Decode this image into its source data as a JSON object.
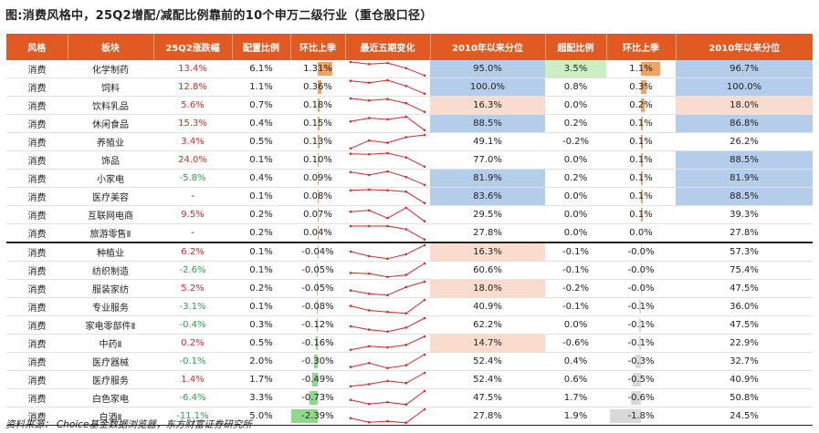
{
  "title": "图:消费风格中，25Q2增配/减配比例靠前的10个申万二级行业（重仓股口径）",
  "columns": [
    "风格",
    "板块",
    "25Q2涨跌幅",
    "配置比例",
    "环比上季",
    "最近五期变化",
    "2010年以来分位",
    "超配比例",
    "环比上季",
    "2010年以来分位"
  ],
  "rows": [
    {
      "style": "消费",
      "sector": "化学制药",
      "ret": "13.4%",
      "alloc": "6.1%",
      "qoq": "1.31%",
      "qoq_v": 1.31,
      "spark": [
        3,
        2.6,
        2.8,
        1.8,
        0.4
      ],
      "pct": "95.0%",
      "pct_hl": "blue",
      "over": "3.5%",
      "over_hl": "green",
      "qoq2": "1.1%",
      "qoq2_v": 1.1,
      "pct2": "96.7%",
      "pct2_hl": "blue"
    },
    {
      "style": "消费",
      "sector": "饲料",
      "ret": "12.8%",
      "alloc": "1.1%",
      "qoq": "0.36%",
      "qoq_v": 0.36,
      "spark": [
        2.8,
        2.5,
        2.9,
        2.0,
        0.8
      ],
      "pct": "100.0%",
      "pct_hl": "blue",
      "over": "0.8%",
      "over_hl": "",
      "qoq2": "0.3%",
      "qoq2_v": 0.3,
      "pct2": "100.0%",
      "pct2_hl": "blue"
    },
    {
      "style": "消费",
      "sector": "饮料乳品",
      "ret": "5.6%",
      "alloc": "0.7%",
      "qoq": "0.18%",
      "qoq_v": 0.18,
      "spark": [
        3,
        2.7,
        2.9,
        2.3,
        1.0
      ],
      "pct": "16.3%",
      "pct_hl": "pink",
      "over": "0.0%",
      "over_hl": "",
      "qoq2": "0.2%",
      "qoq2_v": 0.2,
      "pct2": "18.0%",
      "pct2_hl": "pink"
    },
    {
      "style": "消费",
      "sector": "休闲食品",
      "ret": "15.3%",
      "alloc": "0.4%",
      "qoq": "0.15%",
      "qoq_v": 0.15,
      "spark": [
        2.2,
        2.7,
        2.5,
        2.9,
        0.9
      ],
      "pct": "88.5%",
      "pct_hl": "blue",
      "over": "0.2%",
      "over_hl": "",
      "qoq2": "0.1%",
      "qoq2_v": 0.1,
      "pct2": "86.8%",
      "pct2_hl": "blue"
    },
    {
      "style": "消费",
      "sector": "养殖业",
      "ret": "3.4%",
      "alloc": "0.5%",
      "qoq": "0.13%",
      "qoq_v": 0.13,
      "spark": [
        0.6,
        2.0,
        1.6,
        2.6,
        3.0
      ],
      "pct": "49.1%",
      "pct_hl": "",
      "over": "-0.2%",
      "over_hl": "",
      "qoq2": "0.1%",
      "qoq2_v": 0.1,
      "pct2": "26.2%",
      "pct2_hl": ""
    },
    {
      "style": "消费",
      "sector": "饰品",
      "ret": "24.0%",
      "alloc": "0.1%",
      "qoq": "0.10%",
      "qoq_v": 0.1,
      "spark": [
        2.8,
        2.7,
        2.9,
        2.2,
        0.7
      ],
      "pct": "77.0%",
      "pct_hl": "",
      "over": "0.0%",
      "over_hl": "",
      "qoq2": "0.1%",
      "qoq2_v": 0.1,
      "pct2": "88.5%",
      "pct2_hl": "blue"
    },
    {
      "style": "消费",
      "sector": "小家电",
      "ret": "-5.8%",
      "alloc": "0.4%",
      "qoq": "0.09%",
      "qoq_v": 0.09,
      "spark": [
        2.6,
        2.2,
        2.7,
        1.9,
        0.8
      ],
      "pct": "81.9%",
      "pct_hl": "blue",
      "over": "0.2%",
      "over_hl": "",
      "qoq2": "0.1%",
      "qoq2_v": 0.1,
      "pct2": "81.9%",
      "pct2_hl": "blue"
    },
    {
      "style": "消费",
      "sector": "医疗美容",
      "ret": "-",
      "alloc": "0.1%",
      "qoq": "0.08%",
      "qoq_v": 0.08,
      "spark": [
        2.8,
        2.9,
        2.8,
        2.6,
        1.0
      ],
      "pct": "83.6%",
      "pct_hl": "blue",
      "over": "0.0%",
      "over_hl": "",
      "qoq2": "0.1%",
      "qoq2_v": 0.1,
      "pct2": "88.5%",
      "pct2_hl": "blue"
    },
    {
      "style": "消费",
      "sector": "互联网电商",
      "ret": "9.5%",
      "alloc": "0.2%",
      "qoq": "0.07%",
      "qoq_v": 0.07,
      "spark": [
        2.3,
        2.5,
        1.3,
        2.9,
        0.8
      ],
      "pct": "29.5%",
      "pct_hl": "",
      "over": "0.0%",
      "over_hl": "",
      "qoq2": "0.1%",
      "qoq2_v": 0.1,
      "pct2": "39.3%",
      "pct2_hl": ""
    },
    {
      "style": "消费",
      "sector": "旅游零售Ⅱ",
      "ret": "-",
      "alloc": "0.2%",
      "qoq": "0.04%",
      "qoq_v": 0.04,
      "spark": [
        2.8,
        2.8,
        2.8,
        2.4,
        1.1
      ],
      "pct": "27.8%",
      "pct_hl": "",
      "over": "0.0%",
      "over_hl": "",
      "qoq2": "0.0%",
      "qoq2_v": 0.0,
      "pct2": "27.8%",
      "pct2_hl": ""
    },
    {
      "style": "消费",
      "sector": "种植业",
      "ret": "6.2%",
      "alloc": "0.1%",
      "qoq": "-0.04%",
      "qoq_v": -0.04,
      "spark": [
        1.9,
        1.2,
        0.8,
        1.5,
        2.9
      ],
      "pct": "16.3%",
      "pct_hl": "pink",
      "over": "-0.1%",
      "over_hl": "",
      "qoq2": "-0.0%",
      "qoq2_v": -0.02,
      "pct2": "57.3%",
      "pct2_hl": ""
    },
    {
      "style": "消费",
      "sector": "纺织制造",
      "ret": "-2.6%",
      "alloc": "0.1%",
      "qoq": "-0.05%",
      "qoq_v": -0.05,
      "spark": [
        1.3,
        1.2,
        0.7,
        1.0,
        2.7
      ],
      "pct": "60.6%",
      "pct_hl": "",
      "over": "-0.1%",
      "over_hl": "",
      "qoq2": "-0.0%",
      "qoq2_v": -0.02,
      "pct2": "75.4%",
      "pct2_hl": ""
    },
    {
      "style": "消费",
      "sector": "服装家纺",
      "ret": "5.2%",
      "alloc": "0.2%",
      "qoq": "-0.05%",
      "qoq_v": -0.05,
      "spark": [
        1.3,
        0.8,
        0.6,
        1.8,
        2.6
      ],
      "pct": "18.0%",
      "pct_hl": "pink",
      "over": "-0.2%",
      "over_hl": "",
      "qoq2": "-0.0%",
      "qoq2_v": -0.02,
      "pct2": "47.5%",
      "pct2_hl": ""
    },
    {
      "style": "消费",
      "sector": "专业服务",
      "ret": "-3.1%",
      "alloc": "0.1%",
      "qoq": "-0.08%",
      "qoq_v": -0.08,
      "spark": [
        2.0,
        1.4,
        1.2,
        1.0,
        2.8
      ],
      "pct": "40.9%",
      "pct_hl": "",
      "over": "-0.1%",
      "over_hl": "",
      "qoq2": "-0.1%",
      "qoq2_v": -0.1,
      "pct2": "36.0%",
      "pct2_hl": ""
    },
    {
      "style": "消费",
      "sector": "家电零部件Ⅱ",
      "ret": "-0.4%",
      "alloc": "0.3%",
      "qoq": "-0.12%",
      "qoq_v": -0.12,
      "spark": [
        1.4,
        0.9,
        0.6,
        1.2,
        2.6
      ],
      "pct": "62.2%",
      "pct_hl": "",
      "over": "0.0%",
      "over_hl": "",
      "qoq2": "-0.1%",
      "qoq2_v": -0.1,
      "pct2": "47.5%",
      "pct2_hl": ""
    },
    {
      "style": "消费",
      "sector": "中药Ⅱ",
      "ret": "0.2%",
      "alloc": "0.5%",
      "qoq": "-0.16%",
      "qoq_v": -0.16,
      "spark": [
        0.4,
        1.0,
        0.8,
        1.2,
        2.6
      ],
      "pct": "14.7%",
      "pct_hl": "pink",
      "over": "-0.6%",
      "over_hl": "",
      "qoq2": "-0.1%",
      "qoq2_v": -0.1,
      "pct2": "22.9%",
      "pct2_hl": ""
    },
    {
      "style": "消费",
      "sector": "医疗器械",
      "ret": "-0.1%",
      "alloc": "2.0%",
      "qoq": "-0.30%",
      "qoq_v": -0.3,
      "spark": [
        0.6,
        1.3,
        0.4,
        0.9,
        2.8
      ],
      "pct": "52.4%",
      "pct_hl": "",
      "over": "0.4%",
      "over_hl": "",
      "qoq2": "-0.3%",
      "qoq2_v": -0.3,
      "pct2": "32.7%",
      "pct2_hl": ""
    },
    {
      "style": "消费",
      "sector": "医疗服务",
      "ret": "1.4%",
      "alloc": "1.7%",
      "qoq": "-0.49%",
      "qoq_v": -0.49,
      "spark": [
        0.3,
        0.7,
        1.3,
        0.9,
        2.8
      ],
      "pct": "52.4%",
      "pct_hl": "",
      "over": "0.6%",
      "over_hl": "",
      "qoq2": "-0.5%",
      "qoq2_v": -0.5,
      "pct2": "40.9%",
      "pct2_hl": ""
    },
    {
      "style": "消费",
      "sector": "白色家电",
      "ret": "-6.4%",
      "alloc": "3.3%",
      "qoq": "-0.73%",
      "qoq_v": -0.73,
      "spark": [
        1.3,
        0.6,
        0.9,
        0.5,
        2.8
      ],
      "pct": "47.5%",
      "pct_hl": "",
      "over": "1.7%",
      "over_hl": "",
      "qoq2": "-0.6%",
      "qoq2_v": -0.6,
      "pct2": "50.8%",
      "pct2_hl": ""
    },
    {
      "style": "消费",
      "sector": "白酒Ⅱ",
      "ret": "-11.1%",
      "alloc": "5.0%",
      "qoq": "-2.39%",
      "qoq_v": -2.39,
      "spark": [
        1.2,
        0.4,
        0.6,
        0.3,
        2.9
      ],
      "pct": "27.8%",
      "pct_hl": "",
      "over": "1.9%",
      "over_hl": "",
      "qoq2": "-1.8%",
      "qoq2_v": -1.8,
      "pct2": "24.5%",
      "pct2_hl": ""
    }
  ],
  "footer": "资料来源：  Choice基金数据浏览器，东方财富证券研究所",
  "colors": {
    "header": "#E05A22",
    "pos": "#D62828",
    "neg": "#2E9E4A",
    "bar_pos": "#F1A265",
    "bar_neg": "#8FD98A",
    "bar2_neg": "#D9D9D9",
    "spark": "#D62828"
  }
}
